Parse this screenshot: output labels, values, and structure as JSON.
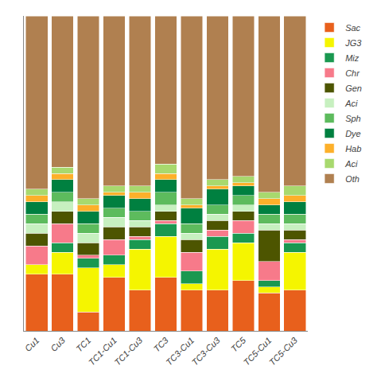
{
  "chart_data": {
    "type": "bar",
    "stacked": true,
    "categories": [
      "Cu1",
      "Cu3",
      "TC1",
      "TC1-Cu1",
      "TC1-Cu3",
      "TC3",
      "TC3-Cu1",
      "TC3-Cu3",
      "TC5",
      "TC5-Cu1",
      "TC5-Cu3"
    ],
    "series": [
      {
        "name": "Sac",
        "color": "#E8601C",
        "values": [
          0.18,
          0.18,
          0.06,
          0.17,
          0.13,
          0.17,
          0.13,
          0.13,
          0.16,
          0.12,
          0.13
        ]
      },
      {
        "name": "JG3",
        "color": "#F5F500",
        "values": [
          0.03,
          0.07,
          0.14,
          0.04,
          0.13,
          0.13,
          0.02,
          0.13,
          0.12,
          0.02,
          0.12
        ]
      },
      {
        "name": "Miz",
        "color": "#1A9850",
        "values": [
          0.0,
          0.03,
          0.03,
          0.03,
          0.03,
          0.04,
          0.04,
          0.04,
          0.03,
          0.02,
          0.03
        ]
      },
      {
        "name": "Chr",
        "color": "#F77A8A",
        "values": [
          0.06,
          0.06,
          0.01,
          0.05,
          0.01,
          0.01,
          0.06,
          0.02,
          0.04,
          0.06,
          0.01
        ]
      },
      {
        "name": "Gen",
        "color": "#4D5500",
        "values": [
          0.04,
          0.04,
          0.04,
          0.04,
          0.03,
          0.03,
          0.04,
          0.03,
          0.03,
          0.1,
          0.03
        ]
      },
      {
        "name": "Aci",
        "color": "#C7F0C0",
        "values": [
          0.03,
          0.03,
          0.03,
          0.03,
          0.02,
          0.02,
          0.02,
          0.02,
          0.02,
          0.02,
          0.02
        ]
      },
      {
        "name": "Sph",
        "color": "#5DBB5D",
        "values": [
          0.03,
          0.03,
          0.03,
          0.03,
          0.03,
          0.04,
          0.03,
          0.03,
          0.03,
          0.03,
          0.03
        ]
      },
      {
        "name": "Dye",
        "color": "#008040",
        "values": [
          0.04,
          0.04,
          0.04,
          0.04,
          0.04,
          0.04,
          0.05,
          0.05,
          0.03,
          0.03,
          0.04
        ]
      },
      {
        "name": "Hab",
        "color": "#FDB02A",
        "values": [
          0.02,
          0.02,
          0.02,
          0.01,
          0.02,
          0.02,
          0.01,
          0.01,
          0.01,
          0.02,
          0.02
        ]
      },
      {
        "name": "Aci",
        "color": "#A8D96E",
        "values": [
          0.02,
          0.02,
          0.02,
          0.02,
          0.02,
          0.03,
          0.02,
          0.02,
          0.02,
          0.02,
          0.03
        ]
      },
      {
        "name": "Oth",
        "color": "#B08050",
        "values": [
          0.55,
          0.48,
          0.58,
          0.54,
          0.54,
          0.47,
          0.58,
          0.52,
          0.51,
          0.56,
          0.54
        ]
      }
    ],
    "ylim": [
      0,
      1.0
    ],
    "yticks": [],
    "tick_labels": "x",
    "grid": false,
    "legend": "upper right"
  }
}
